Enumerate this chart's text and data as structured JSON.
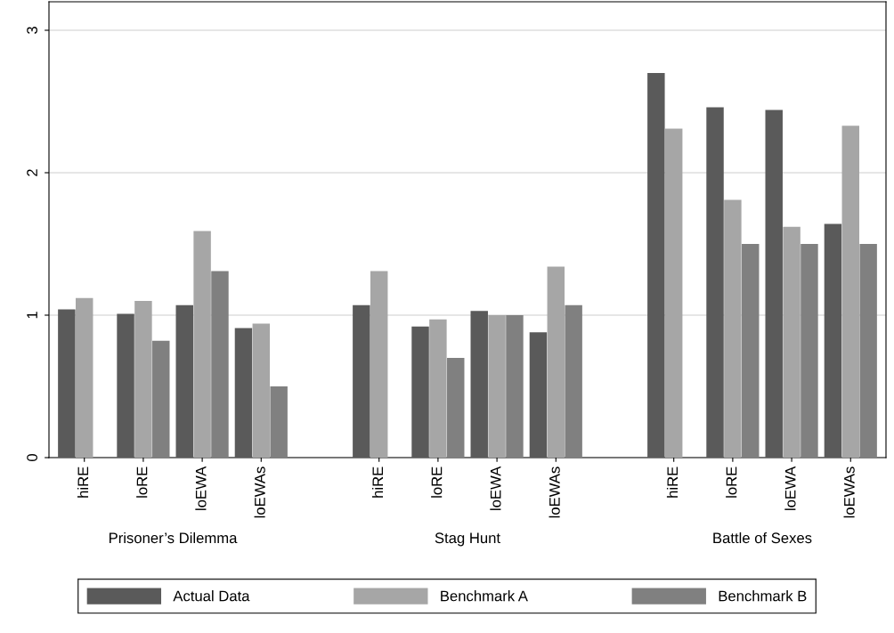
{
  "chart_data": {
    "type": "bar",
    "categories": [
      "hiRE",
      "loRE",
      "loEWA",
      "loEWAs",
      null,
      "hiRE",
      "loRE",
      "loEWA",
      "loEWAs",
      null,
      "hiRE",
      "loRE",
      "loEWA",
      "loEWAs"
    ],
    "series": [
      {
        "name": "Actual Data",
        "color": "#5a5a5a",
        "values": [
          1.04,
          1.01,
          1.07,
          0.91,
          null,
          1.07,
          0.92,
          1.03,
          0.88,
          null,
          2.7,
          2.46,
          2.44,
          1.64
        ]
      },
      {
        "name": "Benchmark A",
        "color": "#a6a6a6",
        "values": [
          1.12,
          1.1,
          1.59,
          0.94,
          null,
          1.31,
          0.97,
          1.0,
          1.34,
          null,
          2.31,
          1.81,
          1.62,
          2.33
        ]
      },
      {
        "name": "Benchmark B",
        "color": "#808080",
        "values": [
          null,
          0.82,
          1.31,
          0.5,
          null,
          null,
          0.7,
          1.0,
          1.07,
          null,
          null,
          1.5,
          1.5,
          1.5
        ]
      }
    ],
    "annotations": [
      "Prisoner’s Dilemma",
      "Stag Hunt",
      "Battle of Sexes"
    ],
    "ylim": [
      0,
      3.2
    ],
    "yticks": [
      0,
      1,
      2,
      3
    ],
    "grid": "y",
    "legend": "bottom"
  }
}
